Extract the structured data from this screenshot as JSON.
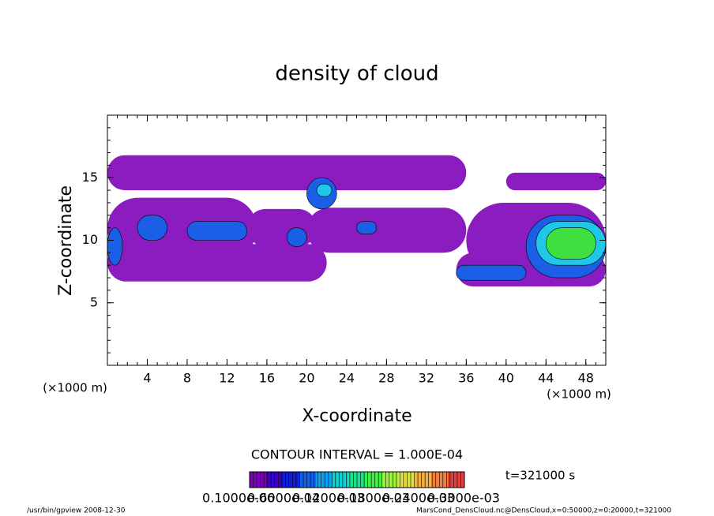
{
  "chart_data": {
    "type": "contour",
    "title": "density of cloud",
    "xlabel": "X-coordinate",
    "ylabel": "Z-coordinate",
    "xunit": "(×1000 m)",
    "xunit_right": "(×1000 m)",
    "xlim": [
      0,
      50
    ],
    "ylim": [
      0,
      20
    ],
    "xticks": [
      4,
      8,
      12,
      16,
      20,
      24,
      28,
      32,
      36,
      40,
      44,
      48
    ],
    "yticks": [
      5,
      10,
      15
    ],
    "xminor": 1,
    "yminor": 1,
    "contour_interval": "CONTOUR INTERVAL = 1.000E-04",
    "time_label": "t=321000 s",
    "footer_left": "/usr/bin/gpview  2008-12-30",
    "footer_right": "MarsCond_DensCloud.nc@DensCloud,x=0:50000,z=0:20000,t=321000",
    "colorbar_labels": [
      "0.1000e-06",
      "0.6000e-04",
      "0.1200e-03",
      "0.1800e-03",
      "0.2400e-03",
      "0.3000e-03"
    ],
    "colorbar_colors": [
      "#7a00b8",
      "#3a00c8",
      "#1020d8",
      "#1060e8",
      "#10a0f0",
      "#10d0d0",
      "#20e090",
      "#40f040",
      "#a0f040",
      "#e0e040",
      "#f0b040",
      "#f08040",
      "#e04040"
    ],
    "level_colors": {
      "purple": "#8a1cc0",
      "blue": "#1a5fe6",
      "cyan": "#1ec8e6",
      "green": "#3ee040"
    },
    "blobs": [
      {
        "x": [
          0,
          36
        ],
        "z": [
          14,
          16.8
        ],
        "value": 1e-07,
        "level": "purple"
      },
      {
        "x": [
          40,
          50
        ],
        "z": [
          14,
          15.4
        ],
        "value": 1e-07,
        "level": "purple"
      },
      {
        "x": [
          0,
          15
        ],
        "z": [
          8.5,
          13.4
        ],
        "value": 1e-07,
        "level": "purple"
      },
      {
        "x": [
          14,
          21
        ],
        "z": [
          9.5,
          12.5
        ],
        "value": 1e-07,
        "level": "purple"
      },
      {
        "x": [
          20,
          36
        ],
        "z": [
          9,
          12.6
        ],
        "value": 1e-07,
        "level": "purple"
      },
      {
        "x": [
          36,
          50
        ],
        "z": [
          7,
          13
        ],
        "value": 1e-07,
        "level": "purple"
      },
      {
        "x": [
          0,
          22
        ],
        "z": [
          6.7,
          9.7
        ],
        "value": 1e-07,
        "level": "purple"
      },
      {
        "x": [
          35,
          50
        ],
        "z": [
          6.3,
          9
        ],
        "value": 1e-07,
        "level": "purple"
      },
      {
        "x": [
          0,
          1.5
        ],
        "z": [
          8,
          11
        ],
        "value": 6e-05,
        "level": "blue"
      },
      {
        "x": [
          3,
          6
        ],
        "z": [
          10,
          12
        ],
        "value": 6e-05,
        "level": "blue"
      },
      {
        "x": [
          8,
          14
        ],
        "z": [
          10,
          11.5
        ],
        "value": 6e-05,
        "level": "blue"
      },
      {
        "x": [
          20,
          23
        ],
        "z": [
          12.5,
          15
        ],
        "value": 6e-05,
        "level": "blue"
      },
      {
        "x": [
          18,
          20
        ],
        "z": [
          9.5,
          11
        ],
        "value": 6e-05,
        "level": "blue"
      },
      {
        "x": [
          25,
          27
        ],
        "z": [
          10.5,
          11.5
        ],
        "value": 6e-05,
        "level": "blue"
      },
      {
        "x": [
          35,
          42
        ],
        "z": [
          6.8,
          8
        ],
        "value": 6e-05,
        "level": "blue"
      },
      {
        "x": [
          42,
          50
        ],
        "z": [
          7,
          12
        ],
        "value": 6e-05,
        "level": "blue"
      },
      {
        "x": [
          21,
          22.5
        ],
        "z": [
          13.5,
          14.5
        ],
        "value": 9e-05,
        "level": "cyan"
      },
      {
        "x": [
          43,
          50
        ],
        "z": [
          8,
          11.5
        ],
        "value": 9e-05,
        "level": "cyan"
      },
      {
        "x": [
          44,
          49
        ],
        "z": [
          8.5,
          11
        ],
        "value": 0.00012,
        "level": "green"
      }
    ]
  }
}
